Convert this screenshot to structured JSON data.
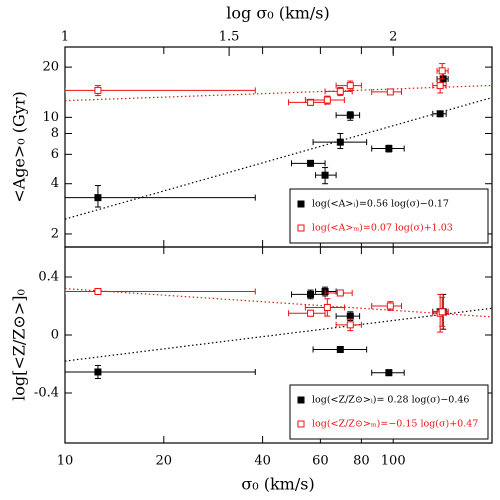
{
  "chart_data": [
    {
      "type": "scatter",
      "xscale": "log",
      "yscale": "log",
      "xlim": [
        10,
        200
      ],
      "ylim": [
        1.67,
        26.4
      ],
      "yticks": [
        2,
        4,
        6,
        8,
        10,
        20
      ],
      "x2lim": [
        1,
        2.301
      ],
      "x2ticks": [
        1,
        1.5,
        2
      ],
      "x2label": "log σ₀ (km/s)",
      "ylabel": "<Age>₀ (Gyr)",
      "series": [
        {
          "marker": "filled",
          "color": "#000000",
          "x": [
            12.6,
            56,
            62,
            69,
            74,
            97,
            139,
            142
          ],
          "values": [
            3.3,
            5.3,
            4.5,
            7.1,
            10.3,
            6.5,
            10.5,
            17
          ],
          "x_lo": [
            10,
            49,
            58,
            57,
            67,
            86,
            132,
            136
          ],
          "x_hi": [
            38,
            62,
            67,
            83,
            79,
            108,
            145,
            147
          ],
          "y_lo": [
            2.9,
            5.1,
            4.0,
            6.5,
            9.6,
            6.2,
            10.2,
            15.5
          ],
          "y_hi": [
            3.9,
            5.5,
            5.0,
            8.0,
            10.8,
            6.8,
            10.8,
            19
          ]
        },
        {
          "marker": "open",
          "color": "#ee1111",
          "x": [
            12.6,
            56,
            63,
            69,
            74,
            98,
            139,
            141
          ],
          "values": [
            14.5,
            12.3,
            12.7,
            14.3,
            15.5,
            14.2,
            15.5,
            19
          ],
          "x_lo": [
            10,
            48,
            54,
            62,
            67,
            86,
            132,
            136
          ],
          "x_hi": [
            38,
            62,
            71,
            75,
            80,
            106,
            145,
            147
          ],
          "y_lo": [
            13.5,
            11.8,
            12,
            13.5,
            14.5,
            13.8,
            14,
            17
          ],
          "y_hi": [
            15.5,
            12.8,
            13.4,
            15.1,
            16.5,
            14.6,
            17,
            21
          ]
        }
      ],
      "fits": [
        {
          "label": "log(<A>ᵢ)=0.56 log(σ)−0.17",
          "color": "#000000",
          "slope": 0.56,
          "intercept": -0.17
        },
        {
          "label": "log(<A>ₘ)=0.07 log(σ)+1.03",
          "color": "#ee1111",
          "slope": 0.07,
          "intercept": 1.03
        }
      ]
    },
    {
      "type": "scatter",
      "xscale": "log",
      "yscale": "linear",
      "xlim": [
        10,
        200
      ],
      "xticks": [
        10,
        20,
        40,
        60,
        80,
        100
      ],
      "xlabel": "σ₀ (km/s)",
      "ylim": [
        -0.745,
        0.607
      ],
      "yticks": [
        -0.4,
        0,
        0.4
      ],
      "ylabel": "log[<Z/Z⊙>]₀",
      "series": [
        {
          "marker": "filled",
          "color": "#000000",
          "x": [
            12.6,
            56,
            62,
            69,
            74,
            97,
            139,
            142
          ],
          "values": [
            -0.255,
            0.28,
            0.3,
            -0.1,
            0.13,
            -0.26,
            0.16,
            0.16
          ],
          "x_lo": [
            10,
            49,
            58,
            57,
            67,
            86,
            132,
            136
          ],
          "x_hi": [
            38,
            62,
            67,
            83,
            79,
            108,
            145,
            147
          ],
          "y_lo": [
            -0.3,
            0.25,
            0.27,
            -0.12,
            0.1,
            -0.28,
            0.14,
            0.04
          ],
          "y_hi": [
            -0.21,
            0.31,
            0.33,
            -0.08,
            0.16,
            -0.24,
            0.18,
            0.28
          ]
        },
        {
          "marker": "open",
          "color": "#ee1111",
          "x": [
            12.6,
            56,
            63,
            69,
            74,
            98,
            139,
            141
          ],
          "values": [
            0.3,
            0.15,
            0.19,
            0.29,
            0.07,
            0.2,
            0.15,
            0.16
          ],
          "x_lo": [
            10,
            48,
            54,
            62,
            67,
            86,
            132,
            136
          ],
          "x_hi": [
            38,
            62,
            71,
            75,
            80,
            106,
            145,
            147
          ],
          "y_lo": [
            0.29,
            0.13,
            0.13,
            0.27,
            0.03,
            0.17,
            0.02,
            0.06
          ],
          "y_hi": [
            0.31,
            0.17,
            0.25,
            0.31,
            0.11,
            0.23,
            0.28,
            0.26
          ]
        }
      ],
      "fits": [
        {
          "label": "log(<Z/Z⊙>ᵢ)= 0.28 log(σ)−0.46",
          "color": "#000000",
          "slope": 0.28,
          "intercept": -0.46
        },
        {
          "label": "log(<Z/Z⊙>ₘ)=−0.15 log(σ)+0.47",
          "color": "#ee1111",
          "slope": -0.15,
          "intercept": 0.47
        }
      ]
    }
  ]
}
